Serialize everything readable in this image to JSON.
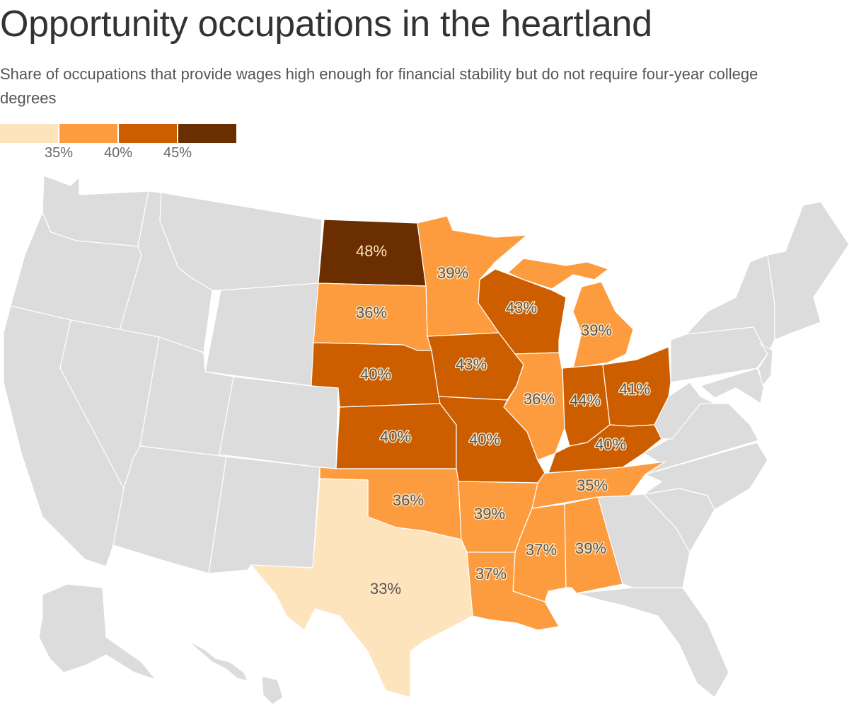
{
  "title": "Opportunity occupations in the heartland",
  "subtitle": "Share of occupations that provide wages high enough for financial stability but do not require four-year college degrees",
  "colors": {
    "bin1": "#fde4bd",
    "bin2": "#fd9b3f",
    "bin3": "#cd5e00",
    "bin4": "#6a2e00",
    "other": "#dcdcdc",
    "label_dark": "#555555",
    "label_light": "#fde4bd"
  },
  "legend": {
    "thresholds": [
      "35%",
      "40%",
      "45%"
    ]
  },
  "chart_data": {
    "type": "choropleth",
    "unit": "%",
    "bins": [
      {
        "range": "< 35%",
        "color": "#fde4bd"
      },
      {
        "range": "35–40%",
        "color": "#fd9b3f"
      },
      {
        "range": "40–45%",
        "color": "#cd5e00"
      },
      {
        "range": "≥ 45%",
        "color": "#6a2e00"
      }
    ],
    "states": [
      {
        "id": "ND",
        "value": 48,
        "label": "48%"
      },
      {
        "id": "MN",
        "value": 39,
        "label": "39%"
      },
      {
        "id": "SD",
        "value": 36,
        "label": "36%"
      },
      {
        "id": "WI",
        "value": 43,
        "label": "43%"
      },
      {
        "id": "MI",
        "value": 39,
        "label": "39%"
      },
      {
        "id": "NE",
        "value": 40,
        "label": "40%"
      },
      {
        "id": "IA",
        "value": 43,
        "label": "43%"
      },
      {
        "id": "IL",
        "value": 36,
        "label": "36%"
      },
      {
        "id": "IN",
        "value": 44,
        "label": "44%"
      },
      {
        "id": "OH",
        "value": 41,
        "label": "41%"
      },
      {
        "id": "KS",
        "value": 40,
        "label": "40%"
      },
      {
        "id": "MO",
        "value": 40,
        "label": "40%"
      },
      {
        "id": "KY",
        "value": 40,
        "label": "40%"
      },
      {
        "id": "TN",
        "value": 35,
        "label": "35%"
      },
      {
        "id": "OK",
        "value": 36,
        "label": "36%"
      },
      {
        "id": "AR",
        "value": 39,
        "label": "39%"
      },
      {
        "id": "MS",
        "value": 37,
        "label": "37%"
      },
      {
        "id": "AL",
        "value": 39,
        "label": "39%"
      },
      {
        "id": "LA",
        "value": 37,
        "label": "37%"
      },
      {
        "id": "TX",
        "value": 33,
        "label": "33%"
      }
    ]
  }
}
